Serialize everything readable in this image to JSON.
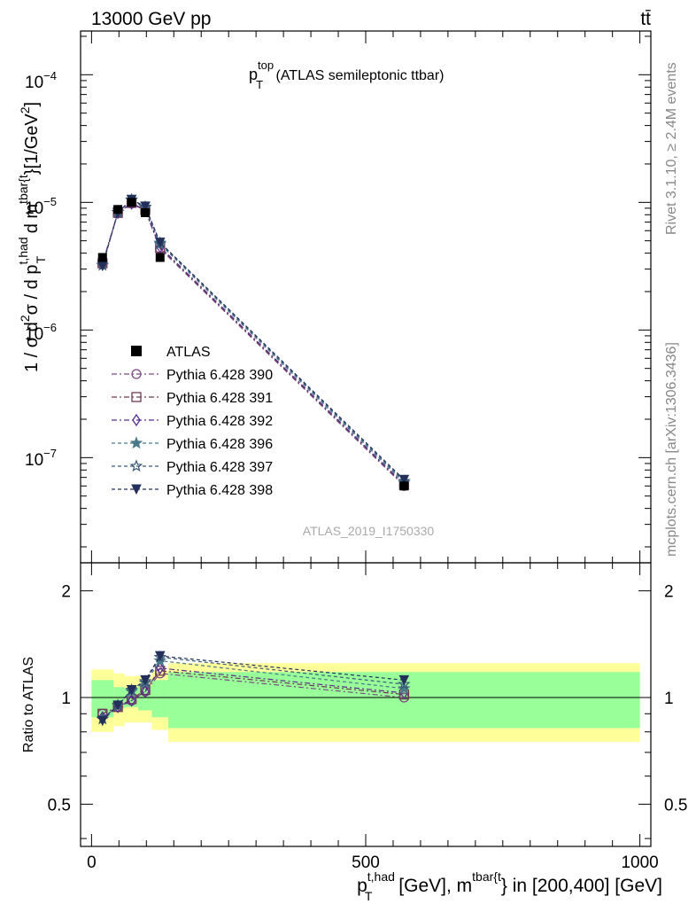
{
  "header": {
    "left": "13000 GeV pp",
    "right": "tt̄"
  },
  "title": {
    "main": "p",
    "sup": "top",
    "sub": "T",
    "rest": " (ATLAS semileptonic ttbar)"
  },
  "side": {
    "rivet": "Rivet 3.1.10, ≥ 2.4M events",
    "mcplots": "mcplots.cern.ch [arXiv:1306.3436]"
  },
  "watermark": "ATLAS_2019_I1750330",
  "ylabel_top": {
    "p1": "1 / σ d",
    "s1": "2",
    "p2": "σ / d p",
    "sup1": "t,had",
    "sub1": "T",
    "p3": " d m",
    "sup2": "tbar{t",
    "p4": "}[1/GeV",
    "s2": "2",
    "p5": "]"
  },
  "ylabel_bottom": "Ratio to ATLAS",
  "xlabel": {
    "p1": "p",
    "sup1": "t,had",
    "sub1": "T",
    "p2": " [GeV], m",
    "sup2": "tbar{t",
    "p3": "} in [200,400] [GeV]"
  },
  "top_ticks": {
    "m4": "10",
    "m4e": "−4",
    "m5": "10",
    "m5e": "−5",
    "m6": "10",
    "m6e": "−6",
    "m7": "10",
    "m7e": "−7"
  },
  "ratio_ticks": [
    "0.5",
    "1",
    "2"
  ],
  "x_ticks": [
    "0",
    "500",
    "1000"
  ],
  "colors": {
    "data": "#000000",
    "band_inner": "#99ff99",
    "band_outer": "#ffff99",
    "s390": "#7a4a82",
    "s391": "#6e3a50",
    "s392": "#5a2d8c",
    "s396": "#4a7a8a",
    "s397": "#3a5878",
    "s398": "#23305a"
  },
  "chart_data": {
    "type": "line",
    "xlim": [
      -20,
      1020
    ],
    "ylim": [
      1.5e-08,
      0.00022
    ],
    "ylog": true,
    "ratio_ylim": [
      0.38,
      2.4
    ],
    "bins": [
      {
        "lo": 0,
        "hi": 40
      },
      {
        "lo": 40,
        "hi": 60
      },
      {
        "lo": 60,
        "hi": 85
      },
      {
        "lo": 85,
        "hi": 110
      },
      {
        "lo": 110,
        "hi": 140
      },
      {
        "lo": 140,
        "hi": 1000
      }
    ],
    "x": [
      20,
      48,
      73,
      98,
      125,
      570
    ],
    "data": {
      "name": "ATLAS",
      "values": [
        3.7e-06,
        8.8e-06,
        1e-05,
        8.3e-06,
        3.7e-06,
        6e-08
      ],
      "err_inner": [
        0.12,
        0.07,
        0.06,
        0.08,
        0.12,
        0.18
      ],
      "err_outer": [
        0.2,
        0.17,
        0.15,
        0.15,
        0.19,
        0.25
      ]
    },
    "series": [
      {
        "name": "Pythia 6.428 390",
        "key": "s390",
        "marker": "circle",
        "dash": "6,3,2,3",
        "ratio": [
          0.9,
          0.94,
          0.98,
          1.04,
          1.17,
          1.0
        ]
      },
      {
        "name": "Pythia 6.428 391",
        "key": "s391",
        "marker": "square",
        "dash": "6,3,2,3",
        "ratio": [
          0.9,
          0.94,
          0.99,
          1.05,
          1.19,
          1.02
        ]
      },
      {
        "name": "Pythia 6.428 392",
        "key": "s392",
        "marker": "diamond",
        "dash": "6,3,2,3",
        "ratio": [
          0.88,
          0.94,
          0.98,
          1.04,
          1.21,
          1.03
        ]
      },
      {
        "name": "Pythia 6.428 396",
        "key": "s396",
        "marker": "star",
        "dash": "4,3",
        "ratio": [
          0.87,
          0.95,
          1.04,
          1.1,
          1.27,
          1.06
        ]
      },
      {
        "name": "Pythia 6.428 397",
        "key": "s397",
        "marker": "staropen",
        "dash": "4,3",
        "ratio": [
          0.87,
          0.95,
          1.05,
          1.11,
          1.3,
          1.09
        ]
      },
      {
        "name": "Pythia 6.428 398",
        "key": "s398",
        "marker": "tridown",
        "dash": "4,3",
        "ratio": [
          0.86,
          0.95,
          1.05,
          1.12,
          1.31,
          1.12
        ]
      }
    ]
  }
}
